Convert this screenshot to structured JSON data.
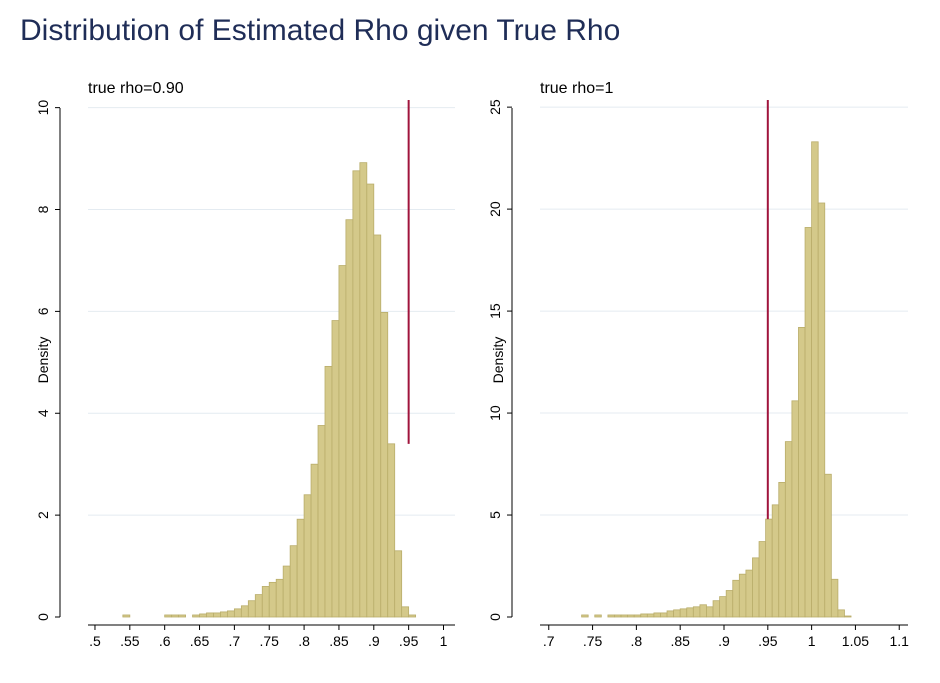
{
  "title": "Distribution of Estimated Rho given True Rho",
  "colors": {
    "bar_fill": "#d4c98a",
    "bar_stroke": "#b9ad6a",
    "vline": "#a0143c",
    "grid": "#e4ebf1",
    "title": "#1f2d57",
    "axis": "#000000"
  },
  "chart_data": [
    {
      "type": "bar",
      "subtitle": "true rho=0.90",
      "ylabel": "Density",
      "xlim": [
        0.49,
        1.0165
      ],
      "ylim": [
        0,
        10.15
      ],
      "xticks": [
        ".5",
        ".55",
        ".6",
        ".65",
        ".7",
        ".75",
        ".8",
        ".85",
        ".9",
        ".95",
        "1"
      ],
      "xtick_values": [
        0.5,
        0.55,
        0.6,
        0.65,
        0.7,
        0.75,
        0.8,
        0.85,
        0.9,
        0.95,
        1.0
      ],
      "yticks": [
        "0",
        "2",
        "4",
        "6",
        "8",
        "10"
      ],
      "ytick_values": [
        0,
        2,
        4,
        6,
        8,
        10
      ],
      "grid": true,
      "bin_width": 0.01,
      "bin_start": 0.5,
      "values": [
        0,
        0,
        0,
        0,
        0.04,
        0,
        0,
        0,
        0,
        0,
        0.04,
        0.04,
        0.04,
        0,
        0.04,
        0.06,
        0.08,
        0.08,
        0.1,
        0.12,
        0.16,
        0.22,
        0.32,
        0.44,
        0.6,
        0.68,
        0.74,
        1.0,
        1.4,
        1.92,
        2.4,
        3.0,
        3.76,
        4.92,
        5.82,
        6.9,
        7.8,
        8.76,
        8.92,
        8.5,
        7.5,
        5.98,
        3.4,
        1.3,
        0.2,
        0.04
      ],
      "vline_x": 0.95,
      "vline_label": "",
      "vline_y_start": 3.4
    },
    {
      "type": "bar",
      "subtitle": "true rho=1",
      "ylabel": "Density",
      "xlim": [
        0.69,
        1.11
      ],
      "ylim": [
        0,
        25.35
      ],
      "xticks": [
        ".7",
        ".75",
        ".8",
        ".85",
        ".9",
        ".95",
        "1",
        "1.05",
        "1.1"
      ],
      "xtick_values": [
        0.7,
        0.75,
        0.8,
        0.85,
        0.9,
        0.95,
        1.0,
        1.05,
        1.1
      ],
      "yticks": [
        "0",
        "5",
        "10",
        "15",
        "20",
        "25"
      ],
      "ytick_values": [
        0,
        5,
        10,
        15,
        20,
        25
      ],
      "grid": true,
      "bin_width": 0.0075,
      "bin_start": 0.7,
      "values": [
        0,
        0,
        0,
        0,
        0,
        0.1,
        0,
        0.1,
        0,
        0.1,
        0.1,
        0.1,
        0.1,
        0.1,
        0.15,
        0.15,
        0.2,
        0.2,
        0.3,
        0.35,
        0.4,
        0.45,
        0.5,
        0.6,
        0.5,
        0.8,
        1.0,
        1.3,
        1.8,
        2.1,
        2.3,
        2.9,
        3.7,
        4.8,
        5.5,
        6.6,
        8.6,
        10.6,
        14.2,
        19.1,
        23.3,
        20.3,
        7.0,
        1.85,
        0.35,
        0.05
      ],
      "vline_x": 0.95,
      "vline_label": ""
    }
  ]
}
